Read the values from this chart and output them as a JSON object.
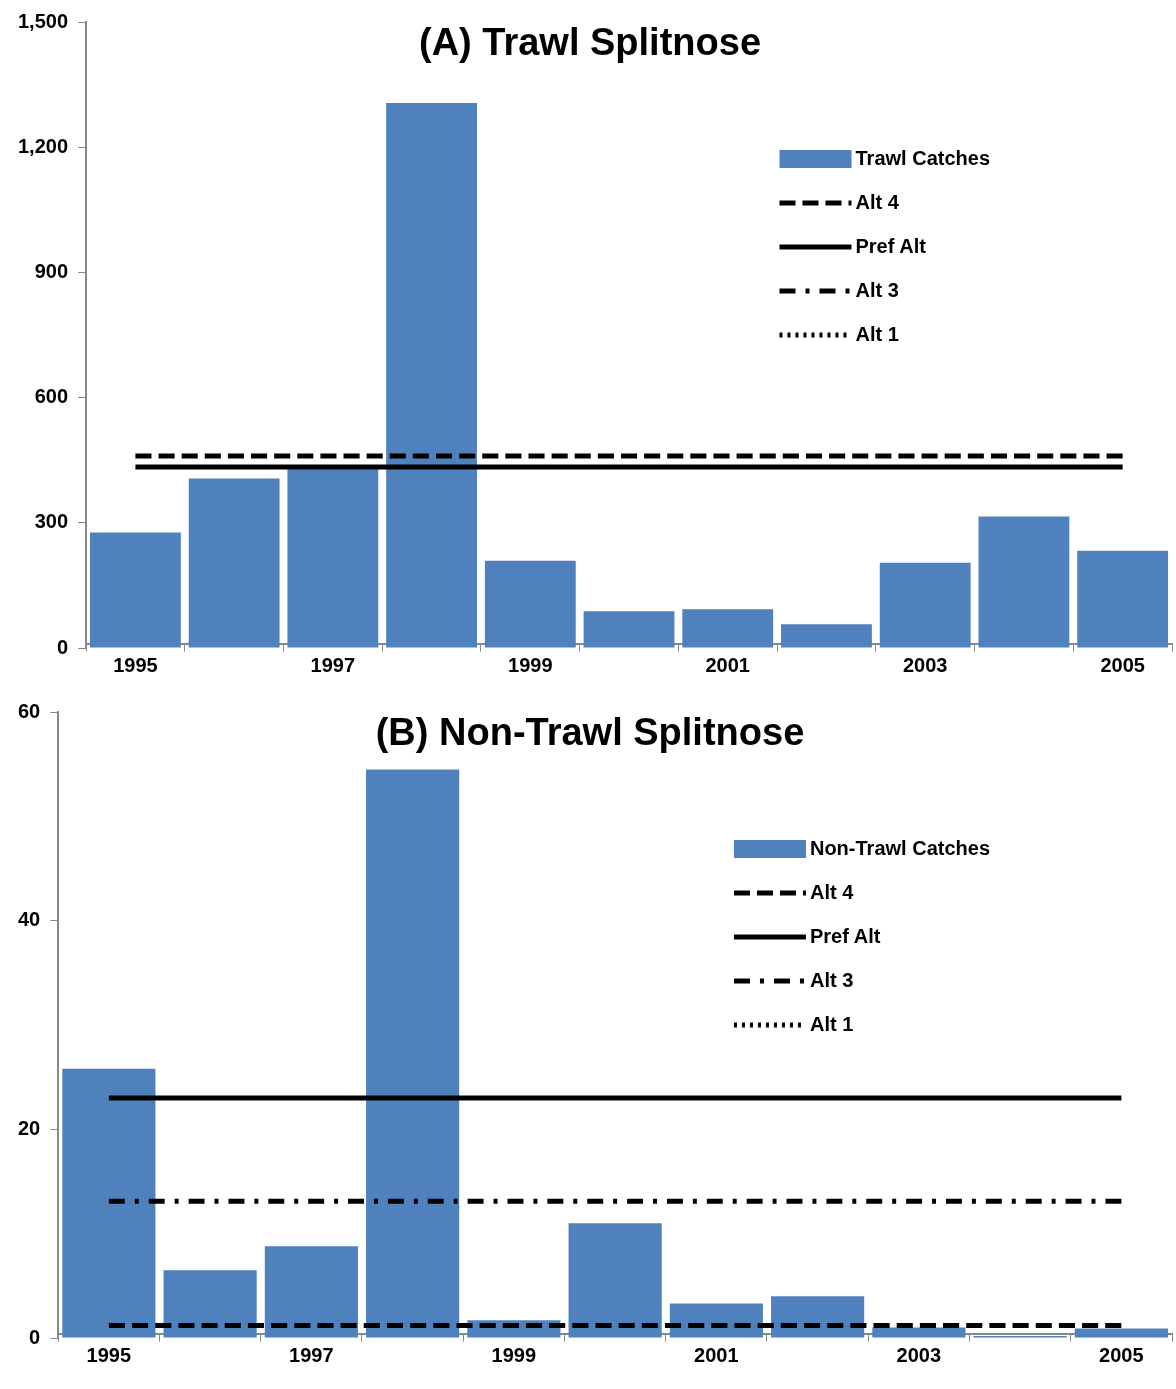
{
  "chart_data": [
    {
      "type": "bar",
      "title": "(A) Trawl Splitnose",
      "categories": [
        "1995",
        null,
        "1997",
        null,
        "1999",
        null,
        "2001",
        null,
        "2003",
        null,
        "2005"
      ],
      "ylim": [
        0,
        1500
      ],
      "yticks": [
        0,
        {
          "value": 300,
          "label": "300"
        },
        {
          "value": 600,
          "label": "600"
        },
        {
          "value": 900,
          "label": "900"
        },
        {
          "value": 1200,
          "label": "1,200"
        },
        {
          "value": 1500,
          "label": "1,500"
        }
      ],
      "grid": false,
      "legend": "top right",
      "series": [
        {
          "name": "Trawl Catches",
          "color": "#4f81bd",
          "values": [
            277,
            406,
            432,
            1306,
            209,
            88,
            93,
            57,
            204,
            315,
            233
          ]
        },
        {
          "name": "Alt 4",
          "type": "line",
          "color": "#000000",
          "line_style": "dashed",
          "values": [
            460,
            460,
            460,
            460,
            460,
            460,
            460,
            460,
            460,
            460,
            460
          ]
        },
        {
          "name": "Pref Alt",
          "type": "line",
          "color": "#000000",
          "line_style": "solid",
          "values": [
            434,
            434,
            434,
            434,
            434,
            434,
            434,
            434,
            434,
            434,
            434
          ]
        },
        {
          "name": "Alt 3",
          "type": "line",
          "color": "#000000",
          "line_style": "dashdot",
          "values": [
            null,
            null,
            null,
            null,
            null,
            null,
            null,
            null,
            null,
            null,
            null
          ]
        },
        {
          "name": "Alt 1",
          "type": "line",
          "color": "#000000",
          "line_style": "dotted",
          "values": [
            null,
            null,
            null,
            null,
            null,
            null,
            null,
            null,
            null,
            null,
            null
          ]
        }
      ]
    },
    {
      "type": "bar",
      "title": "(B) Non-Trawl Splitnose",
      "categories": [
        "1995",
        null,
        "1997",
        null,
        "1999",
        null,
        "2001",
        null,
        "2003",
        null,
        "2005"
      ],
      "ylim": [
        0,
        60
      ],
      "yticks": [
        0,
        20,
        40,
        60
      ],
      "grid": false,
      "legend": "top right",
      "series": [
        {
          "name": "Non-Trawl Catches",
          "color": "#4f81bd",
          "values": [
            25.8,
            6.5,
            8.8,
            54.5,
            1.7,
            11.0,
            3.3,
            4.0,
            1.0,
            0.2,
            0.9
          ]
        },
        {
          "name": "Alt 4",
          "type": "line",
          "color": "#000000",
          "line_style": "dashed",
          "values": [
            1.2,
            1.2,
            1.2,
            1.2,
            1.2,
            1.2,
            1.2,
            1.2,
            1.2,
            1.2,
            1.2
          ]
        },
        {
          "name": "Pref Alt",
          "type": "line",
          "color": "#000000",
          "line_style": "solid",
          "values": [
            23,
            23,
            23,
            23,
            23,
            23,
            23,
            23,
            23,
            23,
            23
          ]
        },
        {
          "name": "Alt 3",
          "type": "line",
          "color": "#000000",
          "line_style": "dashdot",
          "values": [
            13.1,
            13.1,
            13.1,
            13.1,
            13.1,
            13.1,
            13.1,
            13.1,
            13.1,
            13.1,
            13.1
          ]
        },
        {
          "name": "Alt 1",
          "type": "line",
          "color": "#000000",
          "line_style": "dotted",
          "values": [
            null,
            null,
            null,
            null,
            null,
            null,
            null,
            null,
            null,
            null,
            null
          ]
        }
      ]
    }
  ]
}
